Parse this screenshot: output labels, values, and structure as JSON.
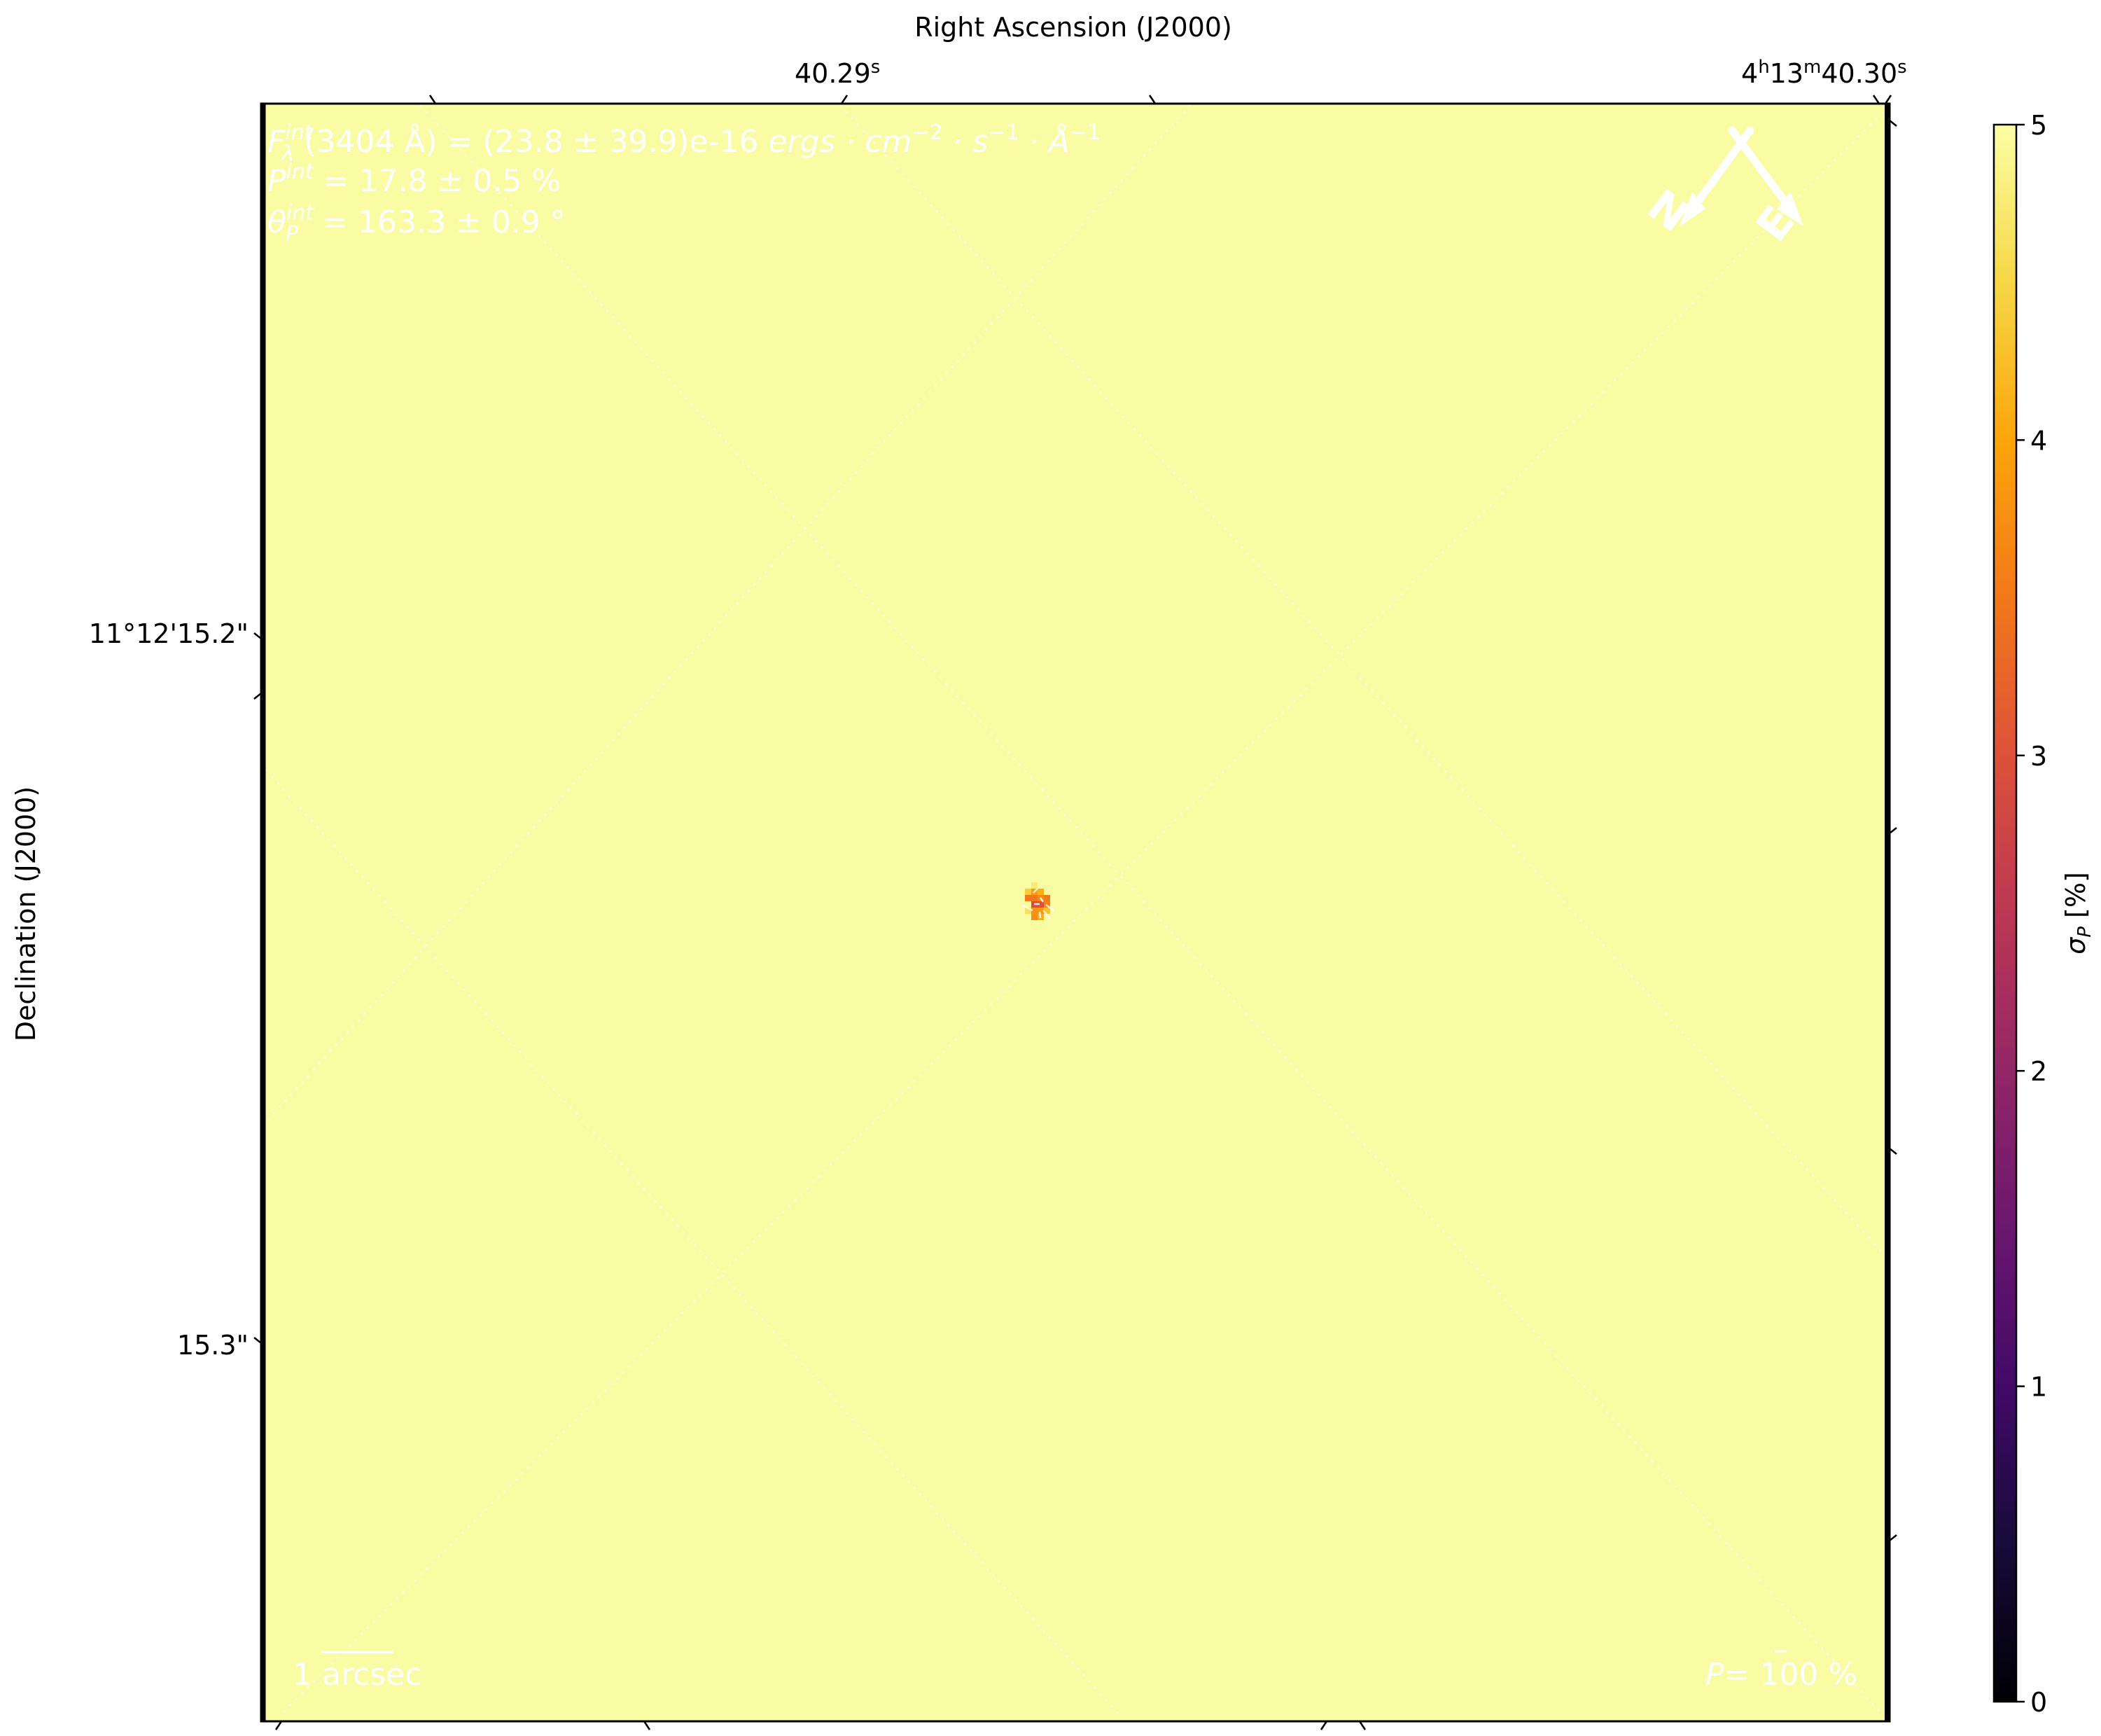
{
  "chart_data": {
    "type": "heatmap",
    "title": "Right Ascension (J2000)",
    "xlabel": "Right Ascension (J2000)",
    "ylabel": "Declination (J2000)",
    "x_tick_labels": [
      {
        "main": "40.29",
        "sup": "s"
      },
      {
        "parts": [
          [
            "4",
            "h"
          ],
          [
            "13",
            "m"
          ],
          [
            "40.30",
            "s"
          ]
        ]
      }
    ],
    "y_tick_labels": [
      "11°12'15.2\"",
      "15.3\""
    ],
    "colorbar": {
      "label": "σ",
      "label_sub": "P",
      "label_unit": " [%]",
      "colormap": "inferno",
      "range": [
        0,
        5
      ],
      "ticks": [
        "0",
        "1",
        "2",
        "3",
        "4",
        "5"
      ]
    },
    "background_value": 5,
    "source_pixels_sigma": [
      [
        null,
        4.75,
        null,
        null
      ],
      [
        4.4,
        3.9,
        4.1,
        4.95
      ],
      [
        3.5,
        3.5,
        3.7,
        3.5
      ],
      [
        4.95,
        2.9,
        2.95,
        3.6
      ],
      [
        4.6,
        3.8,
        3.85,
        4.3
      ],
      [
        null,
        3.75,
        4.1,
        null
      ]
    ],
    "annotations": {
      "flux": {
        "F": "F",
        "sub": "λ",
        "sup": "int",
        "body": "(3404 Å) = (23.8 ± 39.9)e-16 ",
        "units": "ergs · cm",
        "u1": "−2",
        "u2": " · s",
        "u3": "−1",
        "u4": " · Å",
        "u5": "−1"
      },
      "pol": {
        "P": "P",
        "sup": "int",
        "body": " = 17.8 ± 0.5 %"
      },
      "angle": {
        "theta": "θ",
        "sub": "P",
        "sup": "int",
        "body": " = 163.3 ± 0.9 °"
      },
      "scalebar": "1 arcsec",
      "pol_scale": {
        "P": "P",
        "body": "= 100 %"
      },
      "compass": {
        "north": "N",
        "east": "E"
      }
    },
    "colors": {
      "background": "#f9fca3",
      "annotation": "#ffffff"
    }
  }
}
